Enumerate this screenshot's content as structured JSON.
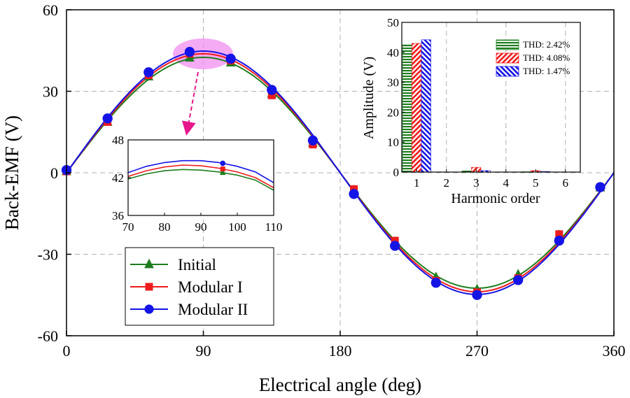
{
  "colors": {
    "initial": "#1e7d1e",
    "modular1": "#ee1c1c",
    "modular2": "#1414e6",
    "highlight": "#f08ff0",
    "arrow": "#e6198c"
  },
  "chart_data": [
    {
      "id": "main",
      "type": "line",
      "title": "",
      "xlabel": "Electrical angle (deg)",
      "ylabel": "Back-EMF (V)",
      "xlim": [
        0,
        360
      ],
      "ylim": [
        -60,
        60
      ],
      "xticks": [
        "0",
        "90",
        "180",
        "270",
        "360"
      ],
      "yticks": [
        "60",
        "30",
        "0",
        "-30",
        "-60"
      ],
      "grid": true,
      "legend_position": "bottom-left",
      "marker_x": [
        0,
        27,
        54,
        81,
        108,
        135,
        162,
        189,
        216,
        243,
        270,
        297,
        324,
        351
      ],
      "series": [
        {
          "name": "Initial",
          "marker": "triangle",
          "amplitude": 42.5,
          "values": [
            0.5,
            18.7,
            35.4,
            42.3,
            40.5,
            29.0,
            11.0,
            -6.5,
            -25.5,
            -38.5,
            -43.0,
            -37.5,
            -23.0,
            -5.5
          ]
        },
        {
          "name": "Modular I",
          "marker": "square",
          "amplitude": 43.8,
          "values": [
            0.5,
            18.7,
            35.9,
            43.8,
            41.3,
            28.5,
            10.4,
            -6.0,
            -25.0,
            -39.8,
            -44.0,
            -38.8,
            -22.6,
            -5.3
          ]
        },
        {
          "name": "Modular II",
          "marker": "circle",
          "amplitude": 44.8,
          "values": [
            1.0,
            20.0,
            37.0,
            44.5,
            42.0,
            30.5,
            11.9,
            -7.8,
            -26.9,
            -40.5,
            -45.0,
            -39.5,
            -25.0,
            -5.3
          ]
        }
      ]
    },
    {
      "id": "zoom",
      "type": "line",
      "xlim": [
        70,
        110
      ],
      "ylim": [
        36,
        48
      ],
      "xticks": [
        "70",
        "80",
        "90",
        "100",
        "110"
      ],
      "yticks": [
        "48",
        "42",
        "36"
      ],
      "marker_x": 96,
      "series": [
        {
          "name": "Initial",
          "x": [
            70,
            75,
            80,
            85,
            90,
            95,
            100,
            105,
            110
          ],
          "values": [
            41.8,
            42.6,
            43.1,
            43.3,
            43.2,
            42.9,
            42.4,
            41.6,
            40.0
          ]
        },
        {
          "name": "Modular I",
          "x": [
            70,
            75,
            80,
            85,
            90,
            95,
            100,
            105,
            110
          ],
          "values": [
            42.2,
            43.1,
            43.7,
            44.0,
            43.9,
            43.5,
            42.9,
            42.0,
            40.4
          ]
        },
        {
          "name": "Modular II",
          "x": [
            70,
            75,
            80,
            85,
            90,
            95,
            100,
            105,
            110
          ],
          "values": [
            42.8,
            43.8,
            44.4,
            44.7,
            44.7,
            44.4,
            43.8,
            42.9,
            41.2
          ]
        }
      ]
    },
    {
      "id": "harmonics",
      "type": "bar",
      "xlabel": "Harmonic order",
      "ylabel": "Amplitude (V)",
      "ylim": [
        0,
        50
      ],
      "yticks": [
        "50",
        "40",
        "30",
        "20",
        "10",
        "0"
      ],
      "categories": [
        "1",
        "2",
        "3",
        "4",
        "5",
        "6"
      ],
      "series": [
        {
          "name": "Initial",
          "thd": "THD: 2.42%",
          "values": [
            42.5,
            0.0,
            0.4,
            0.0,
            0.1,
            0.0
          ]
        },
        {
          "name": "Modular I",
          "thd": "THD: 4.08%",
          "values": [
            43.0,
            0.0,
            1.6,
            0.0,
            0.5,
            0.0
          ]
        },
        {
          "name": "Modular II",
          "thd": "THD: 1.47%",
          "values": [
            44.2,
            0.0,
            0.5,
            0.0,
            0.2,
            0.0
          ]
        }
      ]
    }
  ]
}
